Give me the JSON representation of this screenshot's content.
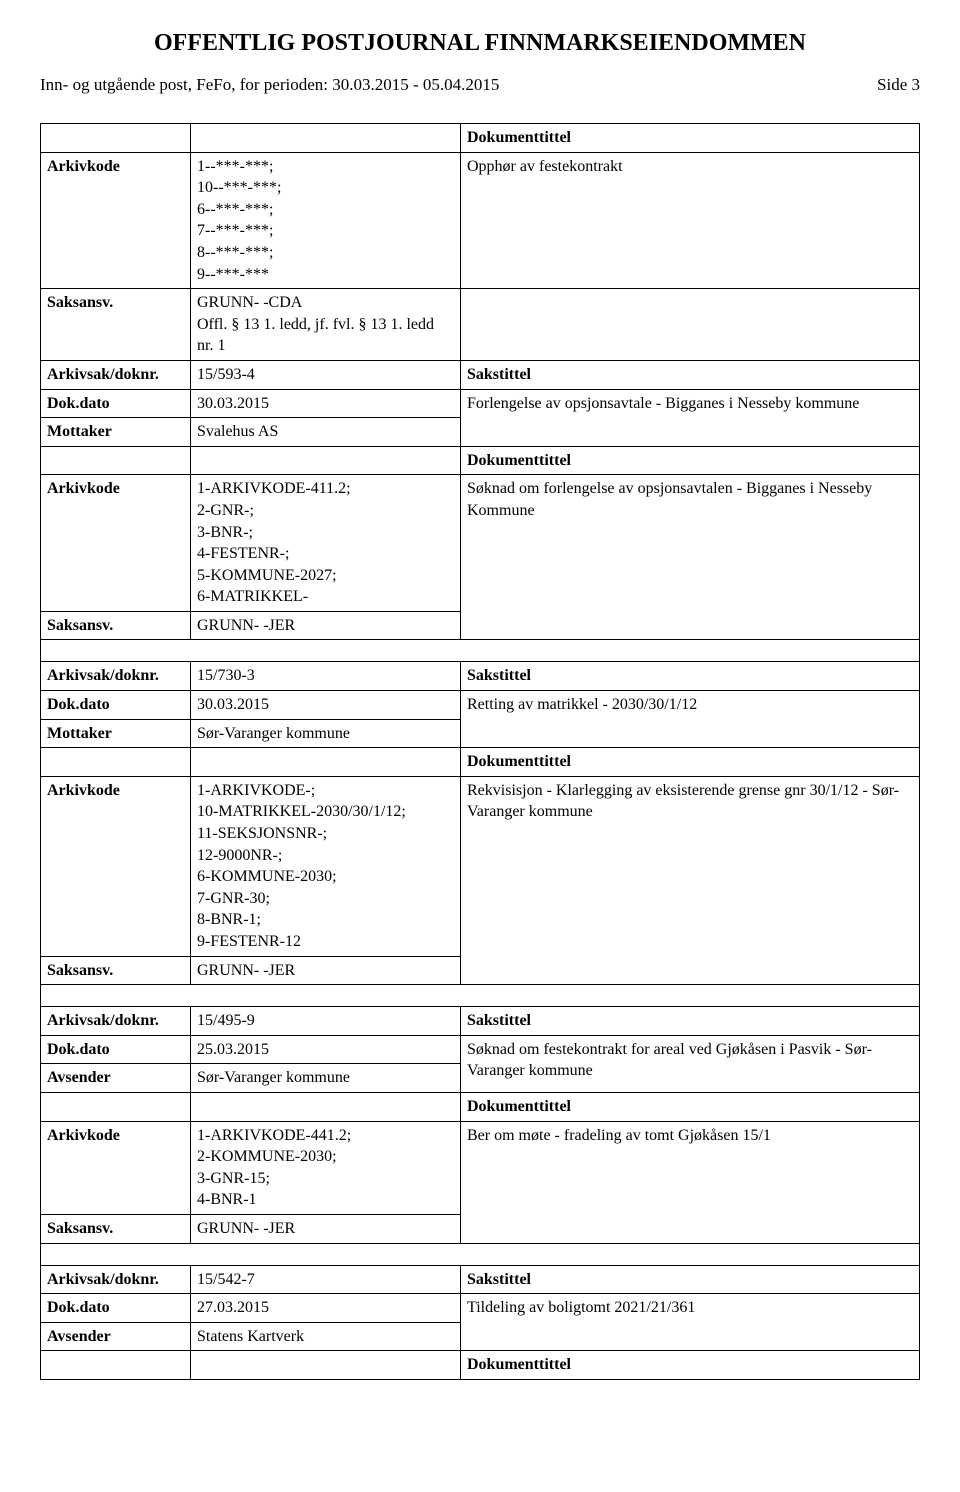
{
  "page": {
    "title": "OFFENTLIG POSTJOURNAL FINNMARKSEIENDOMMEN",
    "subtitle": "Inn- og utgående post, FeFo, for perioden: 30.03.2015 - 05.04.2015",
    "side_label": "Side 3"
  },
  "labels": {
    "arkivkode": "Arkivkode",
    "saksansv": "Saksansv.",
    "arkivsakdoknr": "Arkivsak/doknr.",
    "dokdato": "Dok.dato",
    "mottaker": "Mottaker",
    "avsender": "Avsender",
    "dokumenttittel": "Dokumenttittel",
    "sakstittel": "Sakstittel"
  },
  "blocks": [
    {
      "trailing": {
        "arkivkode": "1--***-***;\n10--***-***;\n6--***-***;\n7--***-***;\n8--***-***;\n9--***-***",
        "doktittel": "Opphør av festekontrakt",
        "saksansv": "GRUNN- -CDA\nOffl. § 13 1. ledd, jf. fvl. § 13 1. ledd nr. 1"
      },
      "entry": {
        "arkivsak": "15/593-4",
        "dokdato": "30.03.2015",
        "party_label": "Mottaker",
        "party": "Svalehus AS",
        "sakstittel": "Forlengelse av opsjonsavtale - Bigganes i Nesseby kommune",
        "arkivkode": "1-ARKIVKODE-411.2;\n2-GNR-;\n3-BNR-;\n4-FESTENR-;\n5-KOMMUNE-2027;\n6-MATRIKKEL-",
        "saksansv": "GRUNN- -JER",
        "doktittel": "Søknad om forlengelse av opsjonsavtalen - Bigganes i Nesseby Kommune"
      }
    },
    {
      "entry": {
        "arkivsak": "15/730-3",
        "dokdato": "30.03.2015",
        "party_label": "Mottaker",
        "party": "Sør-Varanger kommune",
        "sakstittel": "Retting av matrikkel - 2030/30/1/12",
        "arkivkode": "1-ARKIVKODE-;\n10-MATRIKKEL-2030/30/1/12;\n11-SEKSJONSNR-;\n12-9000NR-;\n6-KOMMUNE-2030;\n7-GNR-30;\n8-BNR-1;\n9-FESTENR-12",
        "saksansv": "GRUNN- -JER",
        "doktittel": "Rekvisisjon - Klarlegging av eksisterende grense gnr 30/1/12 - Sør-Varanger kommune"
      }
    },
    {
      "entry": {
        "arkivsak": "15/495-9",
        "dokdato": "25.03.2015",
        "party_label": "Avsender",
        "party": "Sør-Varanger kommune",
        "sakstittel": "Søknad om festekontrakt for areal ved Gjøkåsen i Pasvik - Sør-Varanger kommune",
        "arkivkode": "1-ARKIVKODE-441.2;\n2-KOMMUNE-2030;\n3-GNR-15;\n4-BNR-1",
        "saksansv": "GRUNN- -JER",
        "doktittel": "Ber om møte - fradeling av tomt Gjøkåsen 15/1"
      }
    },
    {
      "entry": {
        "arkivsak": "15/542-7",
        "dokdato": "27.03.2015",
        "party_label": "Avsender",
        "party": "Statens Kartverk",
        "sakstittel": "Tildeling av boligtomt 2021/21/361",
        "no_arkivkode": true
      }
    }
  ]
}
